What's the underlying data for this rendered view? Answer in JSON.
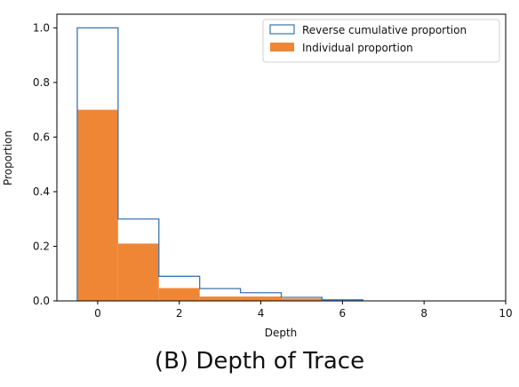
{
  "chart_data": {
    "type": "bar",
    "xlabel": "Depth",
    "ylabel": "Proportion",
    "xlim": [
      -1,
      10
    ],
    "ylim": [
      0,
      1.05
    ],
    "xticks": [
      0,
      2,
      4,
      6,
      8,
      10
    ],
    "yticks": [
      0.0,
      0.2,
      0.4,
      0.6,
      0.8,
      1.0
    ],
    "xtick_labels": [
      "0",
      "2",
      "4",
      "6",
      "8",
      "10"
    ],
    "ytick_labels": [
      "0.0",
      "0.2",
      "0.4",
      "0.6",
      "0.8",
      "1.0"
    ],
    "bin_edges": [
      -0.5,
      0.5,
      1.5,
      2.5,
      3.5,
      4.5,
      5.5,
      6.5
    ],
    "series": [
      {
        "name": "Reverse cumulative proportion",
        "style": "step-outline",
        "color": "#3b75af",
        "values": [
          1.0,
          0.3,
          0.09,
          0.045,
          0.03,
          0.013,
          0.004
        ]
      },
      {
        "name": "Individual proportion",
        "style": "filled",
        "color": "#ef8636",
        "values": [
          0.7,
          0.21,
          0.047,
          0.016,
          0.016,
          0.009,
          0.002
        ]
      }
    ],
    "legend_position": "top-right"
  },
  "caption": {
    "label": "(B)",
    "text": "Depth of Trace"
  }
}
